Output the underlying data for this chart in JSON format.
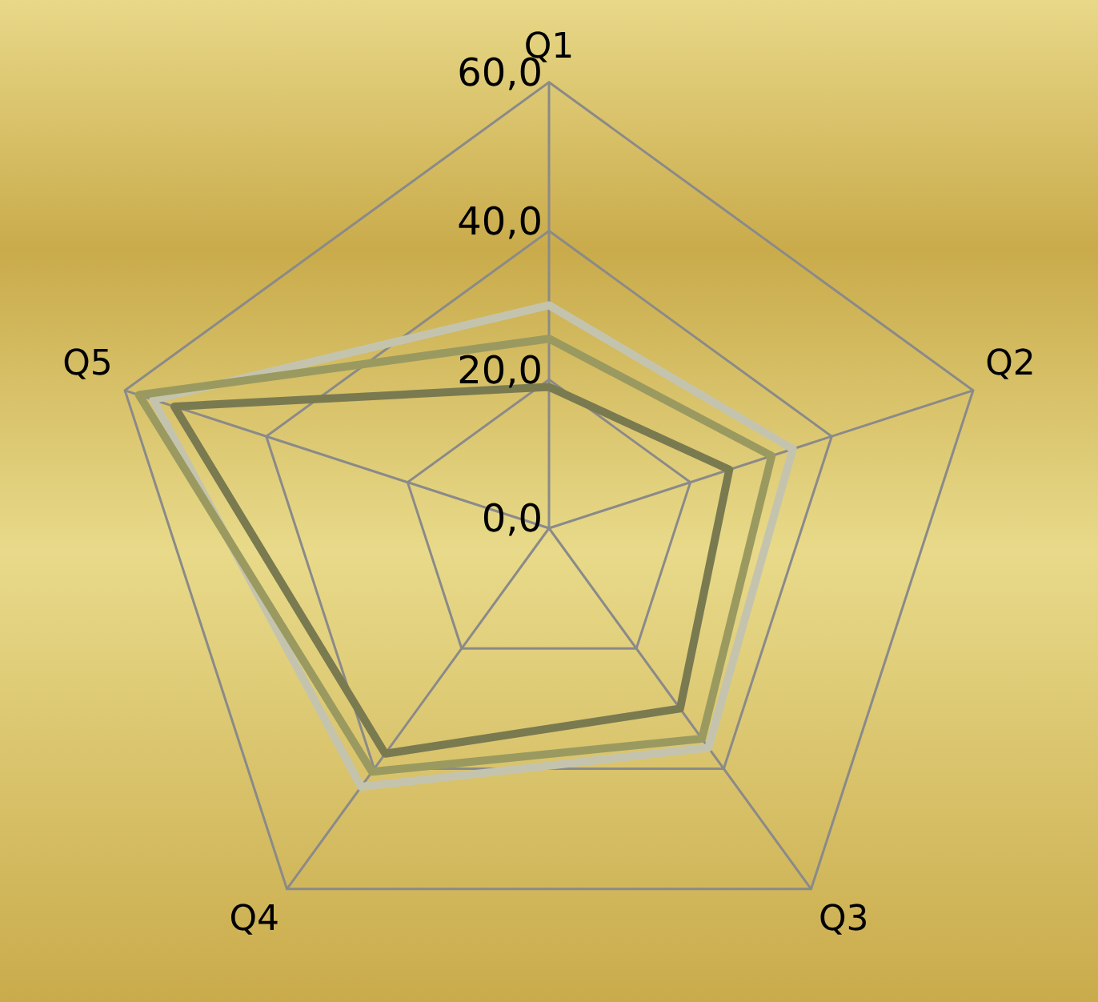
{
  "chart_data": {
    "type": "radar",
    "categories": [
      "Q1",
      "Q2",
      "Q3",
      "Q4",
      "Q5"
    ],
    "series": [
      {
        "color": "#7a7a50",
        "values": [
          19,
          25.5,
          30,
          37.5,
          53
        ]
      },
      {
        "color": "#9a9a60",
        "values": [
          25.5,
          31.5,
          35,
          40.5,
          58
        ]
      },
      {
        "color": "#c4c4ae",
        "values": [
          30,
          34.5,
          36.5,
          43,
          56
        ]
      }
    ],
    "ylim": [
      0,
      60
    ],
    "yticks": [
      {
        "value": 0,
        "label": "0,0"
      },
      {
        "value": 20,
        "label": "20,0"
      },
      {
        "value": 40,
        "label": "40,0"
      },
      {
        "value": 60,
        "label": "60,0"
      }
    ],
    "grid": true,
    "legend": false,
    "marker": "none",
    "line_style": "solid"
  }
}
